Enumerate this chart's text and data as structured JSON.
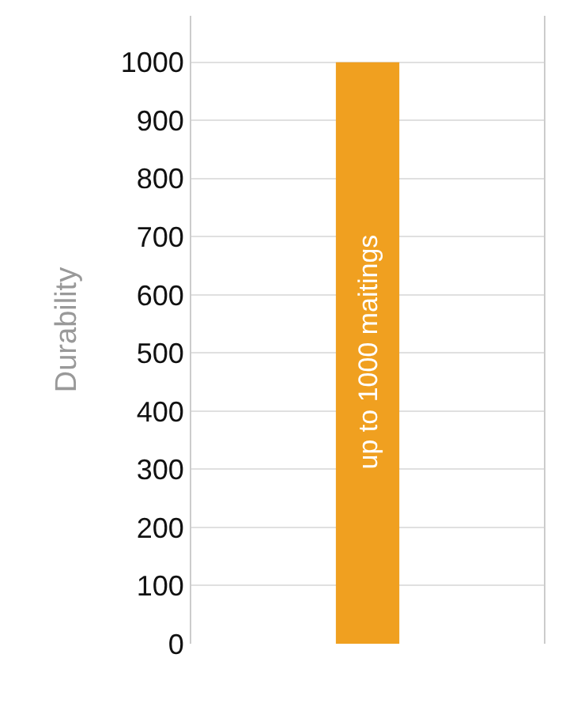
{
  "chart_data": {
    "type": "bar",
    "ylabel": "Durability",
    "categories": [
      null
    ],
    "values": [
      1000
    ],
    "color": "#f0a020",
    "ylim": [
      0,
      1080
    ],
    "yticks": [
      0,
      100,
      200,
      300,
      400,
      500,
      600,
      700,
      800,
      900,
      1000
    ],
    "grid": "y",
    "annotations": [
      "up to 1000 maitings"
    ]
  }
}
